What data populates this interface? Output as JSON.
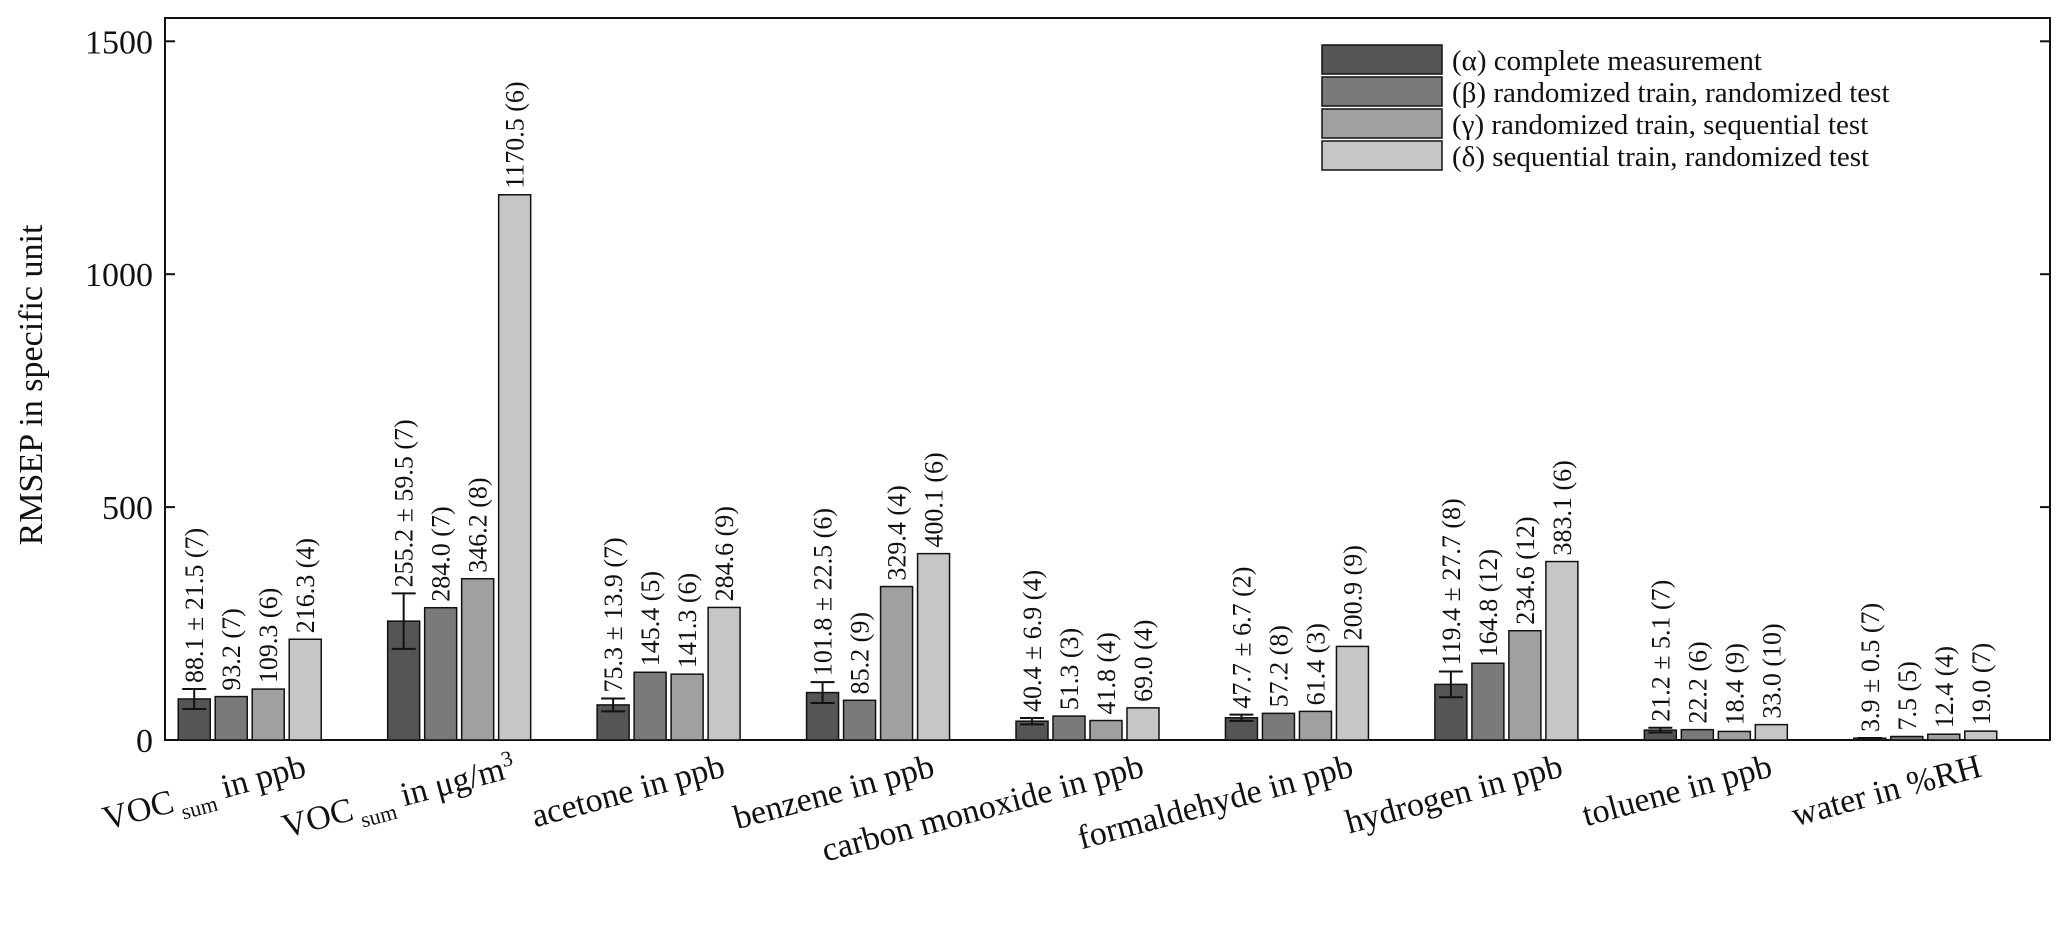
{
  "chart_data": {
    "type": "bar",
    "ylabel": "RMSEP in specific unit",
    "xlabel": "",
    "ylim": [
      0,
      1550
    ],
    "yticks": [
      0,
      500,
      1000,
      1500
    ],
    "categories": [
      {
        "main": "VOC",
        "sub": "sum",
        "post": " in ppb"
      },
      {
        "main": "VOC",
        "sub": "sum",
        "post": " in μg/m",
        "sup": "3"
      },
      {
        "main": "acetone in ppb"
      },
      {
        "main": "benzene in ppb"
      },
      {
        "main": "carbon monoxide in ppb"
      },
      {
        "main": "formaldehyde in ppb"
      },
      {
        "main": "hydrogen in ppb"
      },
      {
        "main": "toluene in ppb"
      },
      {
        "main": "water in %RH"
      }
    ],
    "series": [
      {
        "name": "complete measurement",
        "greek": "(α)",
        "color": "#555555",
        "values": [
          88.1,
          255.2,
          75.3,
          101.8,
          40.4,
          47.7,
          119.4,
          21.2,
          3.9
        ],
        "errors": [
          21.5,
          59.5,
          13.9,
          22.5,
          6.9,
          6.7,
          27.7,
          5.1,
          0.5
        ],
        "labels": [
          "88.1 ± 21.5 (7)",
          "255.2 ± 59.5 (7)",
          "75.3 ± 13.9 (7)",
          "101.8 ± 22.5 (6)",
          "40.4 ± 6.9 (4)",
          "47.7 ± 6.7 (2)",
          "119.4 ± 27.7 (8)",
          "21.2 ± 5.1 (7)",
          "3.9 ± 0.5 (7)"
        ]
      },
      {
        "name": "randomized train, randomized test",
        "greek": "(β)",
        "color": "#7a7a7a",
        "values": [
          93.2,
          284.0,
          145.4,
          85.2,
          51.3,
          57.2,
          164.8,
          22.2,
          7.5
        ],
        "labels": [
          "93.2 (7)",
          "284.0 (7)",
          "145.4 (5)",
          "85.2 (9)",
          "51.3 (3)",
          "57.2 (8)",
          "164.8 (12)",
          "22.2 (6)",
          "7.5 (5)"
        ]
      },
      {
        "name": "randomized train, sequential test",
        "greek": "(γ)",
        "color": "#a0a0a0",
        "values": [
          109.3,
          346.2,
          141.3,
          329.4,
          41.8,
          61.4,
          234.6,
          18.4,
          12.4
        ],
        "labels": [
          "109.3 (6)",
          "346.2 (8)",
          "141.3 (6)",
          "329.4 (4)",
          "41.8 (4)",
          "61.4 (3)",
          "234.6 (12)",
          "18.4 (9)",
          "12.4 (4)"
        ]
      },
      {
        "name": "sequential train, randomized test",
        "greek": "(δ)",
        "color": "#c6c6c6",
        "values": [
          216.3,
          1170.5,
          284.6,
          400.1,
          69.0,
          200.9,
          383.1,
          33.0,
          19.0
        ],
        "labels": [
          "216.3 (4)",
          "1170.5 (6)",
          "284.6 (9)",
          "400.1 (6)",
          "69.0 (4)",
          "200.9 (9)",
          "383.1 (6)",
          "33.0 (10)",
          "19.0 (7)"
        ]
      }
    ],
    "legend_position": "top-right",
    "grid": false
  }
}
